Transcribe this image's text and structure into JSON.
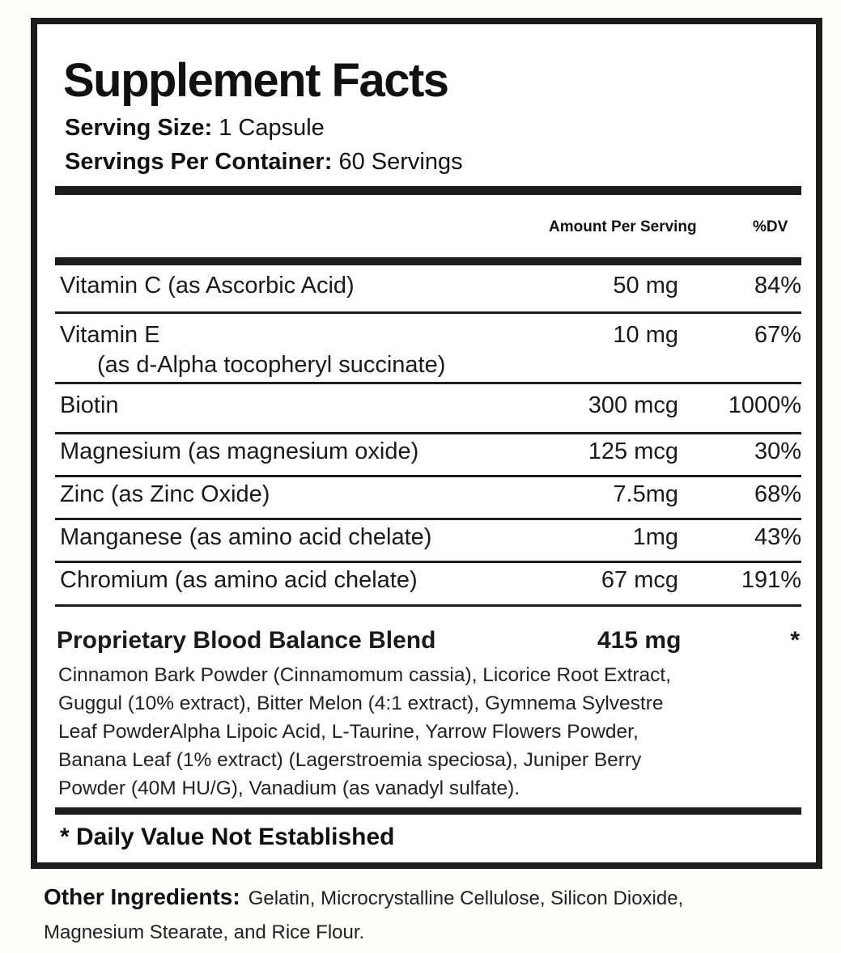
{
  "label": {
    "title": "Supplement Facts",
    "serving_size_label": "Serving Size:",
    "serving_size_value": "1 Capsule",
    "servings_per_container_label": "Servings Per Container:",
    "servings_per_container_value": "60 Servings",
    "header_amount": "Amount Per Serving",
    "header_dv": "%DV",
    "rows": [
      {
        "name": "Vitamin C (as Ascorbic Acid)",
        "sub": "",
        "amount": "50 mg",
        "dv": "84%"
      },
      {
        "name": "Vitamin E",
        "sub": "(as d-Alpha tocopheryl succinate)",
        "amount": "10 mg",
        "dv": "67%"
      },
      {
        "name": "Biotin",
        "sub": "",
        "amount": "300 mcg",
        "dv": "1000%"
      },
      {
        "name": "Magnesium (as magnesium oxide)",
        "sub": "",
        "amount": "125 mcg",
        "dv": "30%"
      },
      {
        "name": "Zinc (as Zinc Oxide)",
        "sub": "",
        "amount": "7.5mg",
        "dv": "68%"
      },
      {
        "name": "Manganese (as amino acid chelate)",
        "sub": "",
        "amount": "1mg",
        "dv": "43%"
      },
      {
        "name": "Chromium (as amino acid chelate)",
        "sub": "",
        "amount": "67 mcg",
        "dv": "191%"
      }
    ],
    "blend": {
      "name": "Proprietary Blood Balance Blend",
      "amount": "415 mg",
      "dv": "*",
      "lines": [
        "Cinnamon Bark Powder (Cinnamomum cassia), Licorice Root Extract,",
        "Guggul (10% extract), Bitter Melon (4:1 extract), Gymnema Sylvestre",
        "Leaf PowderAlpha Lipoic Acid, L-Taurine, Yarrow Flowers Powder,",
        "Banana Leaf (1% extract) (Lagerstroemia speciosa), Juniper Berry",
        "Powder (40M HU/G), Vanadium (as vanadyl sulfate)."
      ]
    },
    "footnote": "* Daily Value Not Established"
  },
  "other_ingredients": {
    "label": "Other Ingredients:",
    "line1": "Gelatin, Microcrystalline Cellulose, Silicon Dioxide,",
    "line2": "Magnesium Stearate, and Rice Flour."
  }
}
